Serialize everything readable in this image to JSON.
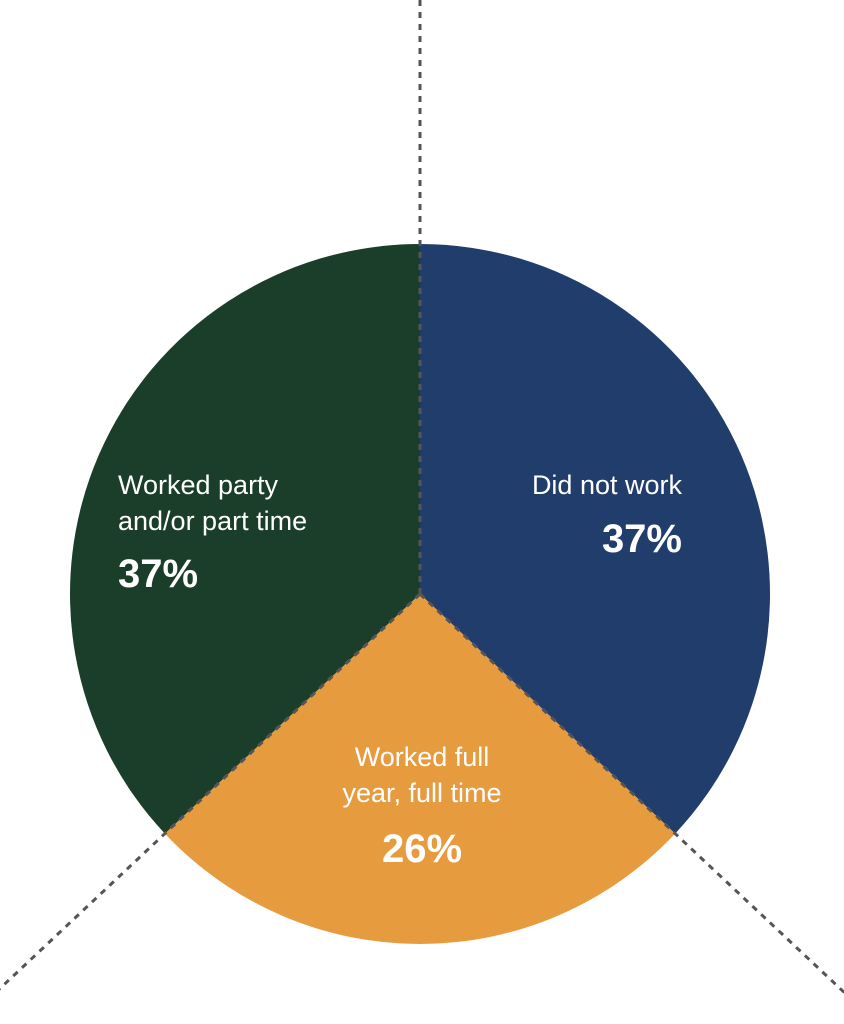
{
  "chart_data": {
    "type": "pie",
    "title": "",
    "slices": [
      {
        "label_lines": [
          "Did not work"
        ],
        "value": 37,
        "value_label": "37%",
        "color": "#203d6c"
      },
      {
        "label_lines": [
          "Worked full",
          "year, full time"
        ],
        "value": 26,
        "value_label": "26%",
        "color": "#e79b3f"
      },
      {
        "label_lines": [
          "Worked party",
          "and/or part time"
        ],
        "value": 37,
        "value_label": "37%",
        "color": "#1b3e2b"
      }
    ],
    "start_angle_deg": 0,
    "direction": "clockwise",
    "legend": "none"
  }
}
